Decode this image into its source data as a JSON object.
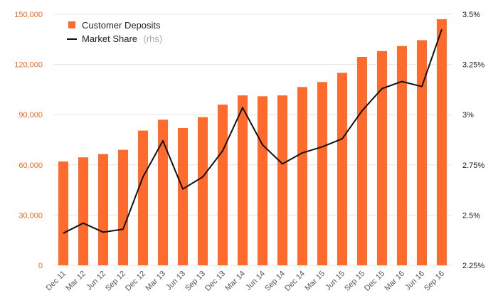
{
  "chart_data": {
    "type": "bar+line",
    "categories": [
      "Dec 11",
      "Mar 12",
      "Jun 12",
      "Sep 12",
      "Dec 12",
      "Mar 13",
      "Jun 13",
      "Sep 13",
      "Dec 13",
      "Mar 14",
      "Jun 14",
      "Sep 14",
      "Dec 14",
      "Mar 15",
      "Jun 15",
      "Sep 15",
      "Dec 15",
      "Mar 16",
      "Jun 16",
      "Sep 16"
    ],
    "series": [
      {
        "name": "Customer Deposits",
        "type": "bar",
        "axis": "left",
        "color": "#ff6b2c",
        "values": [
          62000,
          64500,
          66500,
          69000,
          80500,
          87000,
          82000,
          88500,
          96000,
          101500,
          101000,
          101500,
          106500,
          109500,
          115000,
          124500,
          128000,
          131000,
          134500,
          147000
        ]
      },
      {
        "name": "Market Share",
        "legend_suffix": "(rhs)",
        "type": "line",
        "axis": "right",
        "color": "#111111",
        "values": [
          2.41,
          2.46,
          2.415,
          2.43,
          2.69,
          2.87,
          2.63,
          2.69,
          2.82,
          3.035,
          2.85,
          2.755,
          2.81,
          2.84,
          2.88,
          3.02,
          3.13,
          3.165,
          3.14,
          3.425
        ]
      }
    ],
    "y_left": {
      "ylim": [
        0,
        150000
      ],
      "ticks": [
        "0",
        "30,000",
        "60,000",
        "90,000",
        "120,000",
        "150,000"
      ],
      "tick_values": [
        0,
        30000,
        60000,
        90000,
        120000,
        150000
      ],
      "color": "#f26b21"
    },
    "y_right": {
      "ylim": [
        2.25,
        3.5
      ],
      "ticks": [
        "2.25%",
        "2.5%",
        "2.75%",
        "3%",
        "3.25%",
        "3.5%"
      ],
      "tick_values": [
        2.25,
        2.5,
        2.75,
        3.0,
        3.25,
        3.5
      ]
    },
    "grid": "horizontal",
    "legend": "top-left",
    "title": "",
    "xlabel": "",
    "ylabel": ""
  }
}
